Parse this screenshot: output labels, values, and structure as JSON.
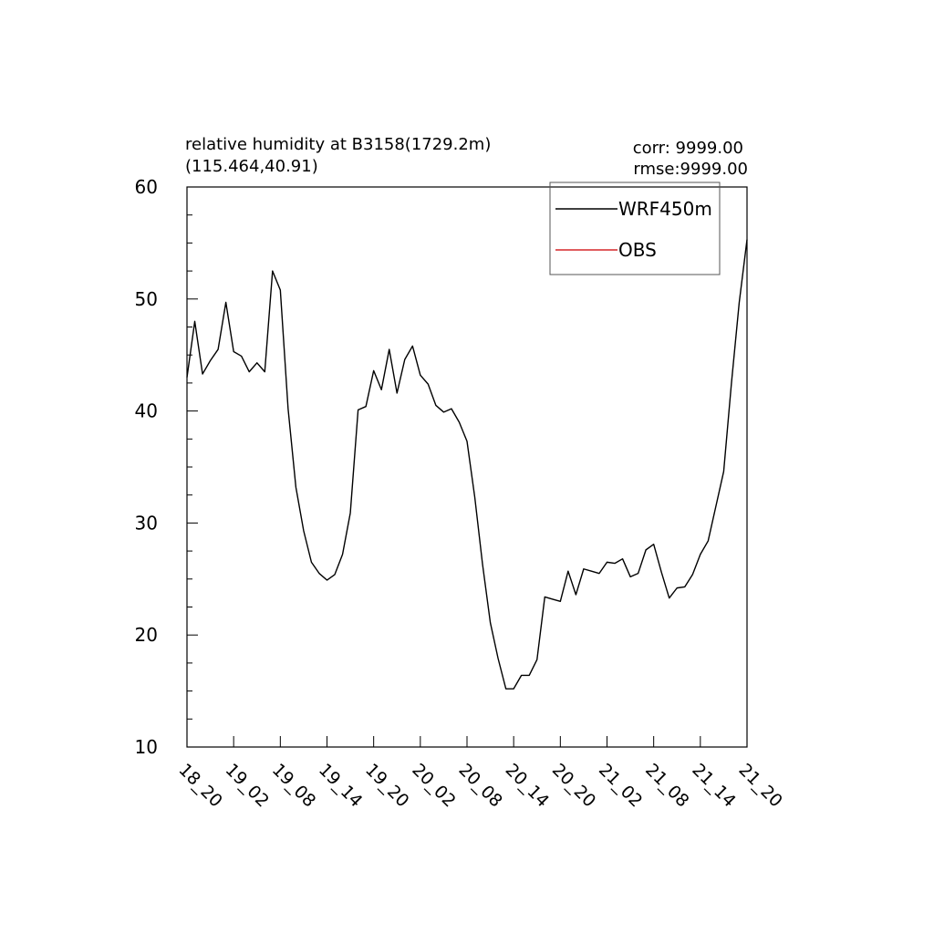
{
  "chart_data": {
    "type": "line",
    "title": "relative humidity at B3158(1729.2m)",
    "subtitle": "(115.464,40.91)",
    "stats": {
      "corr": "corr: 9999.00",
      "rmse": "rmse:9999.00"
    },
    "xlabel": "",
    "ylabel": "",
    "ylim": [
      10,
      60
    ],
    "yticks": [
      10,
      20,
      30,
      40,
      50,
      60
    ],
    "xlim": [
      0,
      72
    ],
    "xticks": [
      {
        "pos": 0,
        "label": "18_20"
      },
      {
        "pos": 6,
        "label": "19_02"
      },
      {
        "pos": 12,
        "label": "19_08"
      },
      {
        "pos": 18,
        "label": "19_14"
      },
      {
        "pos": 24,
        "label": "19_20"
      },
      {
        "pos": 30,
        "label": "20_02"
      },
      {
        "pos": 36,
        "label": "20_08"
      },
      {
        "pos": 42,
        "label": "20_14"
      },
      {
        "pos": 48,
        "label": "20_20"
      },
      {
        "pos": 54,
        "label": "21_02"
      },
      {
        "pos": 60,
        "label": "21_08"
      },
      {
        "pos": 66,
        "label": "21_14"
      },
      {
        "pos": 72,
        "label": "21_20"
      }
    ],
    "grid": false,
    "legend_position": "top-right",
    "series": [
      {
        "name": "WRF450m",
        "color": "#000000",
        "values": [
          43.0,
          48.0,
          43.3,
          44.5,
          45.5,
          49.7,
          45.3,
          44.9,
          43.5,
          44.3,
          43.5,
          52.5,
          50.8,
          40.2,
          33.2,
          29.3,
          26.5,
          25.5,
          24.9,
          25.4,
          27.2,
          30.9,
          40.1,
          40.4,
          43.6,
          41.9,
          45.5,
          41.6,
          44.6,
          45.8,
          43.2,
          42.4,
          40.5,
          39.9,
          40.2,
          39.0,
          37.3,
          32.3,
          26.3,
          21.1,
          17.9,
          15.2,
          15.2,
          16.4,
          16.4,
          17.8,
          23.4,
          23.2,
          23.0,
          25.7,
          23.6,
          25.9,
          25.7,
          25.5,
          26.5,
          26.4,
          26.8,
          25.2,
          25.5,
          27.6,
          28.1,
          25.6,
          23.3,
          24.2,
          24.3,
          25.4,
          27.2,
          28.4,
          31.5,
          34.6,
          42.5,
          49.7,
          55.3
        ]
      },
      {
        "name": "OBS",
        "color": "#d62728",
        "values": []
      }
    ]
  }
}
